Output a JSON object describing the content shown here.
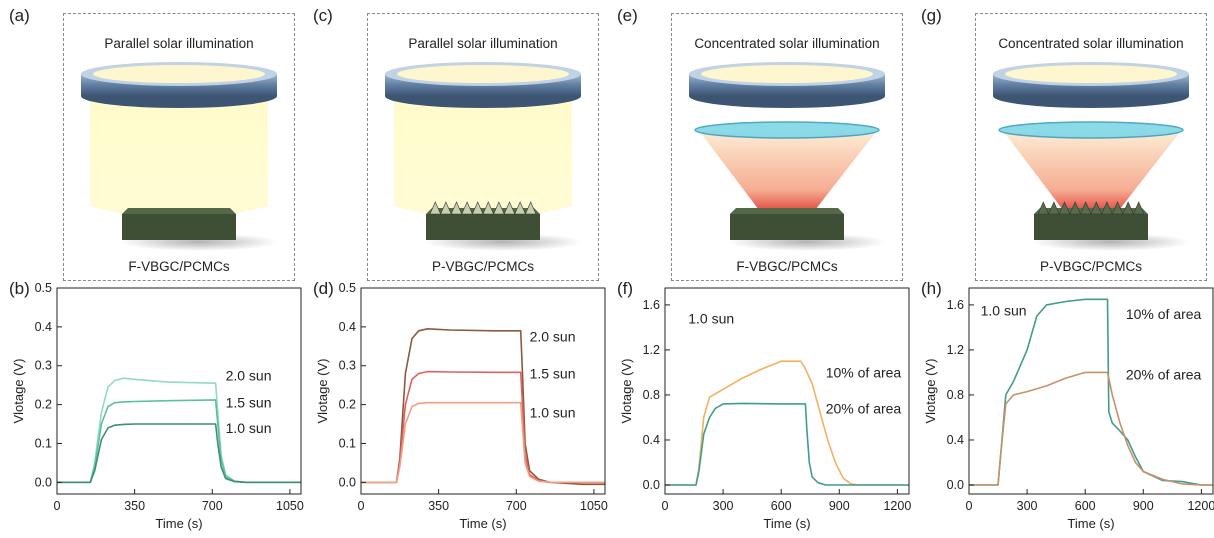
{
  "panels": [
    {
      "letter": "(a)",
      "title": "Parallel solar illumination",
      "caption": "F-VBGC/PCMCs",
      "beam": "parallel",
      "surface": "flat"
    },
    {
      "letter": "(c)",
      "title": "Parallel solar illumination",
      "caption": "P-VBGC/PCMCs",
      "beam": "parallel",
      "surface": "pyramid"
    },
    {
      "letter": "(e)",
      "title": "Concentrated solar illumination",
      "caption": "F-VBGC/PCMCs",
      "beam": "concentrated",
      "surface": "flat"
    },
    {
      "letter": "(g)",
      "title": "Concentrated solar illumination",
      "caption": "P-VBGC/PCMCs",
      "beam": "concentrated",
      "surface": "pyramid"
    }
  ],
  "colors": {
    "lens_ring": "#5f7fa3",
    "parallel_beam": "#fffbc8",
    "concentrated_beam": "#f4a080",
    "hot_spot": "#e0302a",
    "sample": "#3e4f36",
    "frame": "#8a8a8a"
  },
  "chart_data": [
    {
      "letter": "(b)",
      "type": "line",
      "xlabel": "Time (s)",
      "ylabel": "Vlotage (V)",
      "xlim": [
        0,
        1100
      ],
      "ylim": [
        -0.03,
        0.5
      ],
      "xticks": [
        0,
        350,
        700,
        1050
      ],
      "yticks": [
        0.0,
        0.1,
        0.2,
        0.3,
        0.4,
        0.5
      ],
      "yticklabels": [
        "0.0",
        "0.1",
        "0.2",
        "0.3",
        "0.4",
        "0.5"
      ],
      "series": [
        {
          "name": "2.0 sun",
          "color": "#8fdcc0",
          "x": [
            0,
            150,
            170,
            200,
            230,
            260,
            300,
            350,
            500,
            715,
            725,
            740,
            760,
            800,
            850,
            1100
          ],
          "y": [
            0.0,
            0.0,
            0.05,
            0.18,
            0.245,
            0.262,
            0.268,
            0.265,
            0.258,
            0.255,
            0.18,
            0.07,
            0.02,
            0.003,
            0.0,
            0.0
          ]
        },
        {
          "name": "1.5 sun",
          "color": "#5bbfa2",
          "x": [
            0,
            150,
            170,
            200,
            230,
            260,
            300,
            350,
            500,
            715,
            725,
            740,
            760,
            800,
            850,
            1100
          ],
          "y": [
            0.0,
            0.0,
            0.04,
            0.15,
            0.195,
            0.205,
            0.207,
            0.208,
            0.21,
            0.212,
            0.15,
            0.06,
            0.015,
            0.003,
            0.0,
            0.0
          ]
        },
        {
          "name": "1.0 sun",
          "color": "#3f8f72",
          "x": [
            0,
            150,
            170,
            200,
            230,
            260,
            300,
            350,
            500,
            715,
            725,
            740,
            760,
            800,
            850,
            1100
          ],
          "y": [
            0.0,
            0.0,
            0.03,
            0.11,
            0.14,
            0.147,
            0.149,
            0.15,
            0.15,
            0.15,
            0.1,
            0.04,
            0.01,
            0.002,
            0.0,
            0.0
          ]
        }
      ],
      "labels": [
        {
          "text": "2.0 sun",
          "x": 760,
          "y": 0.275
        },
        {
          "text": "1.5 sun",
          "x": 760,
          "y": 0.205
        },
        {
          "text": "1.0 sun",
          "x": 760,
          "y": 0.14
        }
      ]
    },
    {
      "letter": "(d)",
      "type": "line",
      "xlabel": "Time (s)",
      "ylabel": "Vlotage (V)",
      "xlim": [
        0,
        1100
      ],
      "ylim": [
        -0.03,
        0.5
      ],
      "xticks": [
        0,
        350,
        700,
        1050
      ],
      "yticks": [
        0.0,
        0.1,
        0.2,
        0.3,
        0.4,
        0.5
      ],
      "yticklabels": [
        "0.0",
        "0.1",
        "0.2",
        "0.3",
        "0.4",
        "0.5"
      ],
      "series": [
        {
          "name": "2.0 sun",
          "color": "#8a5a3c",
          "x": [
            0,
            160,
            175,
            200,
            230,
            260,
            300,
            400,
            600,
            720,
            728,
            740,
            760,
            800,
            850,
            1000,
            1100
          ],
          "y": [
            0.0,
            0.0,
            0.06,
            0.28,
            0.37,
            0.39,
            0.395,
            0.392,
            0.39,
            0.39,
            0.28,
            0.1,
            0.03,
            0.008,
            0.0,
            -0.005,
            -0.005
          ]
        },
        {
          "name": "1.5 sun",
          "color": "#e06060",
          "x": [
            0,
            160,
            175,
            200,
            230,
            260,
            300,
            400,
            600,
            720,
            728,
            740,
            760,
            800,
            850,
            1000,
            1100
          ],
          "y": [
            0.0,
            0.0,
            0.05,
            0.2,
            0.265,
            0.28,
            0.285,
            0.284,
            0.283,
            0.283,
            0.2,
            0.07,
            0.02,
            0.005,
            0.0,
            0.0,
            0.0
          ]
        },
        {
          "name": "1.0 sun",
          "color": "#f0a080",
          "x": [
            0,
            160,
            175,
            200,
            230,
            260,
            300,
            400,
            600,
            720,
            728,
            740,
            760,
            800,
            850,
            1000,
            1100
          ],
          "y": [
            0.0,
            0.0,
            0.04,
            0.15,
            0.195,
            0.203,
            0.205,
            0.205,
            0.205,
            0.205,
            0.14,
            0.05,
            0.015,
            0.003,
            0.0,
            0.0,
            0.0
          ]
        }
      ],
      "labels": [
        {
          "text": "2.0 sun",
          "x": 760,
          "y": 0.375
        },
        {
          "text": "1.5 sun",
          "x": 760,
          "y": 0.28
        },
        {
          "text": "1.0 sun",
          "x": 760,
          "y": 0.18
        }
      ]
    },
    {
      "letter": "(f)",
      "type": "line",
      "xlabel": "Time (s)",
      "ylabel": "Vlotage (V)",
      "xlim": [
        0,
        1260
      ],
      "ylim": [
        -0.08,
        1.75
      ],
      "xticks": [
        0,
        300,
        600,
        900,
        1200
      ],
      "yticks": [
        0.0,
        0.4,
        0.8,
        1.2,
        1.6
      ],
      "yticklabels": [
        "0.0",
        "0.4",
        "0.8",
        "1.2",
        "1.6"
      ],
      "series": [
        {
          "name": "10% of area",
          "color": "#f5b060",
          "x": [
            0,
            160,
            175,
            200,
            230,
            300,
            400,
            500,
            600,
            700,
            720,
            760,
            800,
            840,
            880,
            920,
            960,
            1000,
            1260
          ],
          "y": [
            0.0,
            0.0,
            0.15,
            0.6,
            0.78,
            0.85,
            0.95,
            1.03,
            1.1,
            1.1,
            1.05,
            0.9,
            0.65,
            0.4,
            0.2,
            0.06,
            0.01,
            0.0,
            0.0
          ]
        },
        {
          "name": "20% of area",
          "color": "#3f9e8a",
          "x": [
            0,
            160,
            175,
            200,
            230,
            260,
            300,
            400,
            600,
            725,
            732,
            745,
            760,
            790,
            830,
            900,
            1260
          ],
          "y": [
            0.0,
            0.0,
            0.12,
            0.45,
            0.6,
            0.68,
            0.72,
            0.725,
            0.72,
            0.72,
            0.5,
            0.2,
            0.07,
            0.02,
            0.0,
            0.0,
            0.0
          ]
        }
      ],
      "labels": [
        {
          "text": "1.0 sun",
          "x": 120,
          "y": 1.48
        },
        {
          "text": "10% of area",
          "x": 830,
          "y": 1.0
        },
        {
          "text": "20% of area",
          "x": 830,
          "y": 0.68
        }
      ]
    },
    {
      "letter": "(h)",
      "type": "line",
      "xlabel": "Time (s)",
      "ylabel": "Vlotage (V)",
      "xlim": [
        0,
        1260
      ],
      "ylim": [
        -0.08,
        1.75
      ],
      "xticks": [
        0,
        300,
        600,
        900,
        1200
      ],
      "yticks": [
        0.0,
        0.4,
        0.8,
        1.2,
        1.6
      ],
      "yticklabels": [
        "0.0",
        "0.4",
        "0.8",
        "1.2",
        "1.6"
      ],
      "series": [
        {
          "name": "10% of area",
          "color": "#3f9e8a",
          "x": [
            0,
            150,
            165,
            190,
            230,
            300,
            350,
            400,
            500,
            600,
            715,
            722,
            740,
            780,
            820,
            860,
            900,
            1000,
            1100,
            1200,
            1260
          ],
          "y": [
            0.0,
            0.0,
            0.3,
            0.8,
            0.92,
            1.2,
            1.5,
            1.6,
            1.63,
            1.65,
            1.65,
            0.65,
            0.55,
            0.48,
            0.4,
            0.25,
            0.12,
            0.04,
            0.03,
            0.0,
            0.0
          ]
        },
        {
          "name": "20% of area",
          "color": "#c89066",
          "x": [
            0,
            150,
            165,
            190,
            230,
            300,
            400,
            500,
            600,
            715,
            740,
            780,
            820,
            860,
            900,
            1000,
            1100,
            1200,
            1260
          ],
          "y": [
            0.0,
            0.0,
            0.3,
            0.72,
            0.8,
            0.83,
            0.88,
            0.95,
            1.0,
            1.0,
            0.8,
            0.55,
            0.35,
            0.2,
            0.12,
            0.05,
            0.01,
            0.0,
            0.0
          ]
        }
      ],
      "labels": [
        {
          "text": "1.0 sun",
          "x": 60,
          "y": 1.55
        },
        {
          "text": "10% of area",
          "x": 810,
          "y": 1.52
        },
        {
          "text": "20% of area",
          "x": 810,
          "y": 0.98
        }
      ]
    }
  ]
}
